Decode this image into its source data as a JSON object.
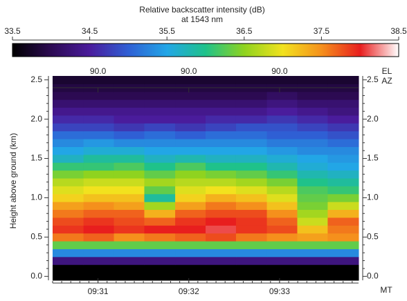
{
  "chart_data": {
    "type": "heatmap",
    "colorbar_title": "Relative backscatter intensity (dB)",
    "colorbar_subtitle": "at 1543 nm",
    "clim": [
      33.5,
      38.5
    ],
    "cticks": [
      33.5,
      34.5,
      35.5,
      36.5,
      37.5,
      38.5
    ],
    "colorscale": [
      "#000000",
      "#2c0a52",
      "#4a1c9c",
      "#2f5fd4",
      "#22a6e6",
      "#1fc28a",
      "#8fd31f",
      "#f2e21e",
      "#f5901c",
      "#e81e1e",
      "#ffffff"
    ],
    "top_axis_labels": [
      "EL",
      "AZ"
    ],
    "top_ticks": [
      {
        "value": 31,
        "label": "90.0"
      },
      {
        "value": 32,
        "label": "90.0"
      },
      {
        "value": 33,
        "label": "90.0"
      }
    ],
    "y_label": "Height above ground (km)",
    "x_unit": "MT",
    "xlim": [
      30.5,
      33.87
    ],
    "xticks": [
      {
        "value": 31,
        "label": "09:31"
      },
      {
        "value": 32,
        "label": "09:32"
      },
      {
        "value": 33,
        "label": "09:33"
      }
    ],
    "ylim": [
      -0.05,
      2.55
    ],
    "yticks": [
      {
        "value": 0,
        "label": "0.0"
      },
      0.5,
      {
        "value": 1,
        "label": "1.0"
      },
      1.5,
      {
        "value": 2,
        "label": "2.0"
      },
      2.5
    ],
    "x": [
      30.67,
      31.01,
      31.34,
      31.68,
      32.02,
      32.35,
      32.69,
      33.03,
      33.36,
      33.7
    ],
    "y": [
      0.0,
      0.1,
      0.2,
      0.3,
      0.4,
      0.5,
      0.6,
      0.7,
      0.8,
      0.9,
      1.0,
      1.1,
      1.2,
      1.3,
      1.4,
      1.5,
      1.6,
      1.7,
      1.8,
      1.9,
      2.0,
      2.1,
      2.2,
      2.3,
      2.4,
      2.5
    ],
    "z": [
      [
        33.5,
        33.5,
        33.5,
        33.5,
        33.5,
        33.5,
        33.5,
        33.5,
        33.5,
        33.5
      ],
      [
        33.5,
        33.5,
        33.5,
        33.5,
        33.5,
        33.5,
        33.5,
        33.5,
        33.5,
        33.5
      ],
      [
        34.3,
        34.3,
        34.3,
        34.3,
        34.3,
        34.3,
        34.3,
        34.3,
        34.3,
        34.3
      ],
      [
        35.3,
        35.3,
        35.3,
        35.3,
        35.3,
        35.3,
        35.3,
        35.3,
        35.3,
        35.3
      ],
      [
        36.3,
        36.3,
        36.3,
        36.3,
        36.3,
        36.3,
        36.3,
        36.3,
        36.3,
        36.3
      ],
      [
        37.6,
        37.7,
        37.5,
        37.6,
        37.7,
        37.8,
        37.6,
        37.5,
        37.4,
        37.5
      ],
      [
        37.9,
        38.0,
        37.9,
        38.0,
        38.0,
        38.1,
        37.9,
        37.8,
        37.2,
        37.6
      ],
      [
        37.8,
        37.9,
        37.8,
        37.7,
        37.9,
        38.0,
        37.9,
        37.7,
        36.8,
        37.7
      ],
      [
        37.6,
        37.7,
        37.7,
        37.3,
        37.7,
        37.8,
        37.8,
        37.5,
        36.6,
        37.3
      ],
      [
        37.4,
        37.5,
        37.4,
        36.6,
        37.4,
        37.6,
        37.5,
        37.2,
        36.4,
        36.8
      ],
      [
        37.1,
        37.2,
        37.2,
        35.9,
        37.1,
        37.3,
        37.2,
        36.9,
        36.3,
        36.4
      ],
      [
        36.9,
        37.0,
        37.0,
        36.3,
        36.9,
        37.0,
        36.9,
        36.7,
        36.2,
        36.1
      ],
      [
        36.7,
        36.8,
        36.8,
        36.6,
        36.7,
        36.7,
        36.6,
        36.4,
        36.0,
        35.9
      ],
      [
        36.4,
        36.5,
        36.5,
        36.3,
        36.5,
        36.4,
        36.3,
        36.1,
        35.8,
        35.7
      ],
      [
        36.1,
        36.1,
        36.2,
        36.0,
        36.2,
        36.0,
        36.0,
        35.8,
        35.6,
        35.5
      ],
      [
        35.7,
        35.9,
        35.9,
        35.7,
        35.8,
        35.7,
        35.7,
        35.6,
        35.5,
        35.4
      ],
      [
        35.5,
        35.6,
        35.6,
        35.5,
        35.5,
        35.5,
        35.5,
        35.4,
        35.3,
        35.3
      ],
      [
        35.3,
        35.4,
        35.3,
        35.3,
        35.3,
        35.3,
        35.3,
        35.2,
        35.2,
        35.1
      ],
      [
        35.1,
        35.1,
        35.0,
        35.1,
        35.0,
        35.1,
        35.1,
        35.0,
        35.0,
        34.9
      ],
      [
        34.8,
        34.8,
        34.7,
        34.8,
        34.7,
        34.8,
        34.9,
        34.9,
        34.8,
        34.7
      ],
      [
        34.6,
        34.6,
        34.5,
        34.5,
        34.5,
        34.6,
        34.6,
        34.7,
        34.6,
        34.5
      ],
      [
        34.4,
        34.4,
        34.4,
        34.4,
        34.4,
        34.4,
        34.4,
        34.5,
        34.4,
        34.3
      ],
      [
        34.2,
        34.2,
        34.2,
        34.2,
        34.2,
        34.2,
        34.2,
        34.3,
        34.2,
        34.2
      ],
      [
        34.0,
        34.0,
        34.0,
        34.0,
        34.0,
        34.0,
        34.0,
        34.1,
        34.0,
        34.0
      ],
      [
        33.9,
        33.9,
        33.9,
        33.9,
        33.9,
        33.9,
        33.9,
        33.9,
        33.9,
        33.9
      ],
      [
        33.8,
        33.8,
        33.8,
        33.8,
        33.8,
        33.8,
        33.8,
        33.8,
        33.8,
        33.8
      ]
    ]
  }
}
